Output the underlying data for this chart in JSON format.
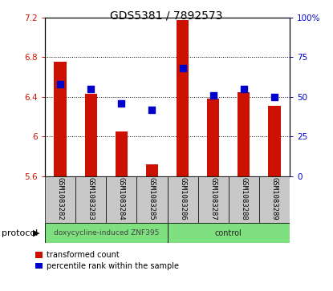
{
  "title": "GDS5381 / 7892573",
  "samples": [
    "GSM1083282",
    "GSM1083283",
    "GSM1083284",
    "GSM1083285",
    "GSM1083286",
    "GSM1083287",
    "GSM1083288",
    "GSM1083289"
  ],
  "red_values": [
    6.75,
    6.43,
    6.05,
    5.72,
    7.17,
    6.38,
    6.45,
    6.31
  ],
  "blue_percentiles": [
    58,
    55,
    46,
    42,
    68,
    51,
    55,
    50
  ],
  "ylim_left": [
    5.6,
    7.2
  ],
  "ylim_right": [
    0,
    100
  ],
  "yticks_left": [
    5.6,
    6.0,
    6.4,
    6.8,
    7.2
  ],
  "yticks_right": [
    0,
    25,
    50,
    75,
    100
  ],
  "ytick_labels_left": [
    "5.6",
    "6",
    "6.4",
    "6.8",
    "7.2"
  ],
  "ytick_labels_right": [
    "0",
    "25",
    "50",
    "75",
    "100%"
  ],
  "grid_values": [
    6.0,
    6.4,
    6.8
  ],
  "group1_label": "doxycycline-induced ZNF395",
  "group2_label": "control",
  "group_color": "#7EE07E",
  "bar_width": 0.4,
  "bar_color": "#CC1100",
  "dot_color": "#0000CC",
  "dot_size": 28,
  "bg_plot": "#FFFFFF",
  "bg_tick": "#C8C8C8",
  "legend_red_label": "transformed count",
  "legend_blue_label": "percentile rank within the sample",
  "protocol_label": "protocol",
  "base_value": 5.6,
  "title_fontsize": 10,
  "tick_fontsize": 7.5,
  "label_fontsize": 6.5,
  "proto_fontsize": 6.5,
  "legend_fontsize": 7
}
